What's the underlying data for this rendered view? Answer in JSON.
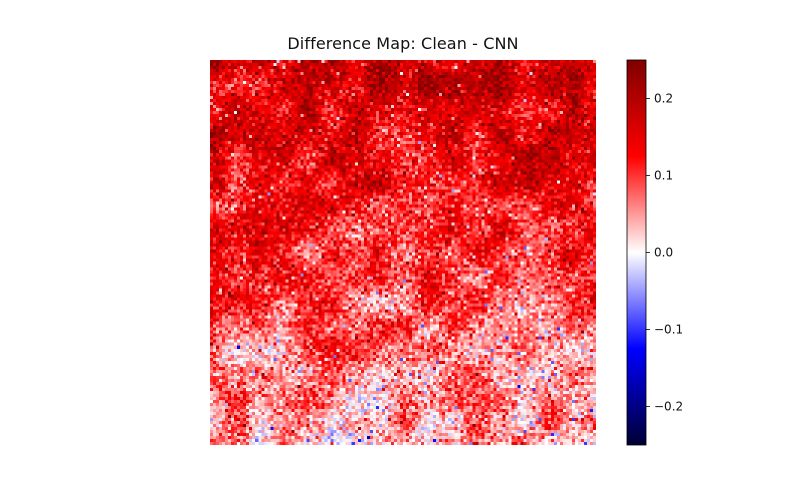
{
  "chart_data": {
    "type": "heatmap",
    "title": "Difference Map: Clean - CNN",
    "xlabel": "",
    "ylabel": "",
    "axes_visible": false,
    "grid": false,
    "colormap": "seismic",
    "colormap_stops": [
      "#000033",
      "#0000ff",
      "#ffffff",
      "#ff0000",
      "#7f0000"
    ],
    "vmin": -0.25,
    "vmax": 0.25,
    "colorbar": {
      "location": "right",
      "ticks": [
        -0.2,
        -0.1,
        0.0,
        0.1,
        0.2
      ],
      "tick_labels": [
        "−0.2",
        "−0.1",
        "0.0",
        "0.1",
        "0.2"
      ]
    },
    "grid_size": [
      128,
      128
    ],
    "value_summary": {
      "overall_mean": 0.09,
      "top_region_mean": 0.17,
      "bottom_region_mean": 0.04,
      "min_value": -0.22,
      "max_value": 0.25
    }
  }
}
